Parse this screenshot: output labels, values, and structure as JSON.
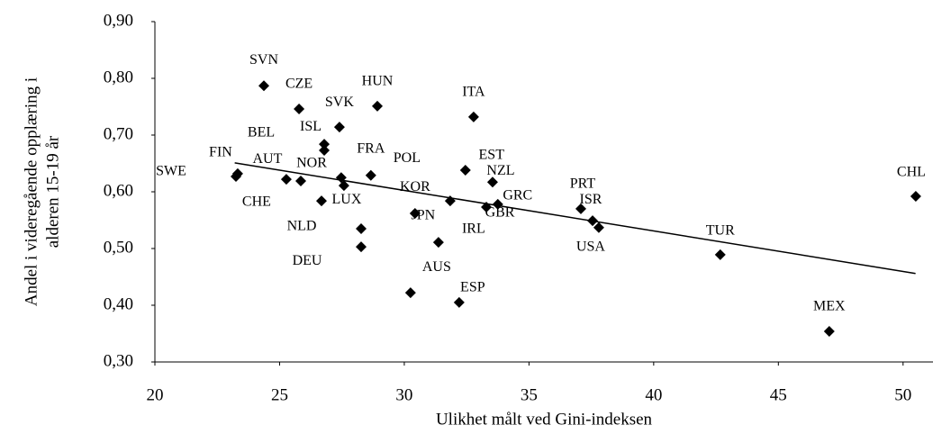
{
  "chart_data": {
    "type": "scatter",
    "x_label": "Ulikhet målt ved Gini-indeksen",
    "y_label": [
      "Andel i videregående opplæring  i",
      "alderen 15-19 år"
    ],
    "labels": [
      "SVN",
      "CZE",
      "HUN",
      "SVK",
      "ITA",
      "ISL",
      "BEL",
      "FIN",
      "SWE",
      "AUT",
      "NOR",
      "FRA",
      "POL",
      "CHE",
      "LUX",
      "NLD",
      "DEU",
      "KOR",
      "JPN",
      "IRL",
      "AUS",
      "ESP",
      "EST",
      "NZL",
      "GRC",
      "GBR",
      "PRT",
      "ISR",
      "USA",
      "TUR",
      "MEX",
      "CHL"
    ],
    "x": [
      24.37,
      25.78,
      28.92,
      27.4,
      32.78,
      26.79,
      26.79,
      23.32,
      23.25,
      25.27,
      25.85,
      28.66,
      27.47,
      27.58,
      26.68,
      28.27,
      28.27,
      31.84,
      30.43,
      31.37,
      30.25,
      32.2,
      32.45,
      33.54,
      33.75,
      33.29,
      37.08,
      37.55,
      37.8,
      42.67,
      47.04,
      50.51
    ],
    "y": [
      0.787,
      0.746,
      0.751,
      0.714,
      0.732,
      0.684,
      0.673,
      0.632,
      0.627,
      0.622,
      0.619,
      0.629,
      0.625,
      0.611,
      0.584,
      0.535,
      0.503,
      0.584,
      0.562,
      0.511,
      0.422,
      0.405,
      0.638,
      0.617,
      0.578,
      0.573,
      0.57,
      0.549,
      0.537,
      0.489,
      0.354,
      0.592
    ],
    "color": "#000000",
    "trendline": {
      "x": [
        23.2,
        50.5
      ],
      "y": [
        0.651,
        0.456
      ]
    },
    "xlim": [
      20,
      51.2
    ],
    "ylim": [
      0.3,
      0.9
    ],
    "xticks": [
      20,
      25,
      30,
      35,
      40,
      45,
      50
    ],
    "yticks": [
      {
        "value": 0.3,
        "label": "0,30"
      },
      {
        "value": 0.4,
        "label": "0,40"
      },
      {
        "value": 0.5,
        "label": "0,50"
      },
      {
        "value": 0.6,
        "label": "0,60"
      },
      {
        "value": 0.7,
        "label": "0,70"
      },
      {
        "value": 0.8,
        "label": "0,80"
      },
      {
        "value": 0.9,
        "label": "0,90"
      }
    ],
    "grid": false
  }
}
